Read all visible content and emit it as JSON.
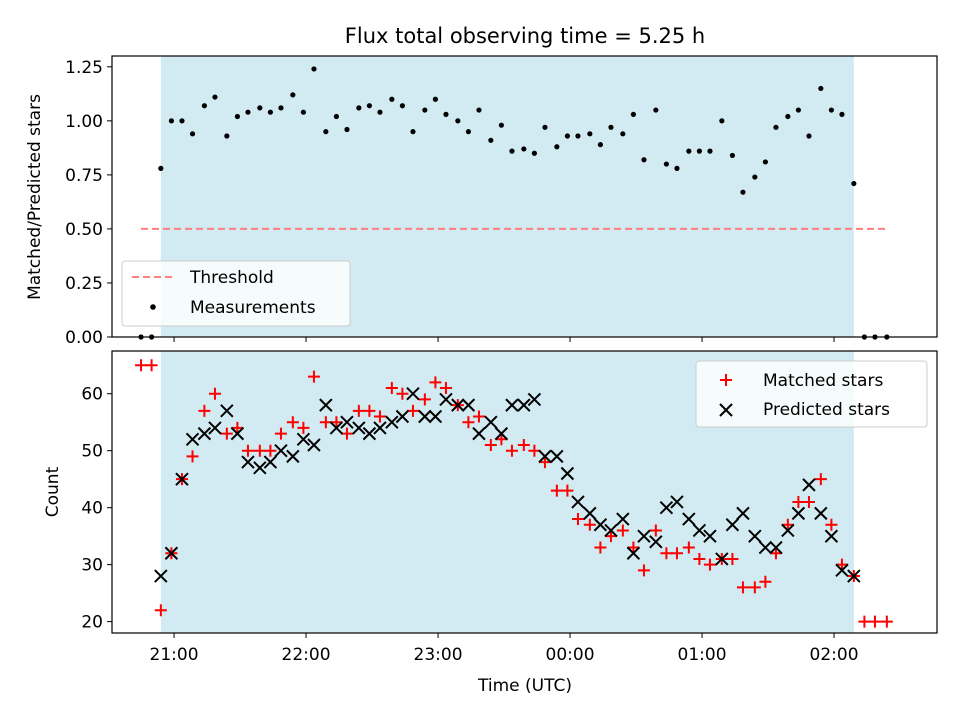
{
  "chart_data": [
    {
      "type": "scatter",
      "title": "Flux total observing time = 5.25 h",
      "ylabel": "Matched/Predicted stars",
      "xlabel": "",
      "ylim": [
        0,
        1.3
      ],
      "yticks": [
        0.0,
        0.25,
        0.5,
        0.75,
        1.0,
        1.25
      ],
      "ytick_labels": [
        "0.00",
        "0.25",
        "0.50",
        "0.75",
        "1.00",
        "1.25"
      ],
      "xlim_hours": [
        20.53,
        26.78
      ],
      "xticks_hours": [
        21,
        22,
        23,
        24,
        25,
        26
      ],
      "observing_window_hours": [
        20.9,
        26.15
      ],
      "shade_color": "#add8e6",
      "legend_location": "lower left",
      "threshold": {
        "name": "Threshold",
        "value": 0.5,
        "x_range_hours": [
          20.75,
          26.4
        ],
        "color": "#ff7f7f"
      },
      "series": [
        {
          "name": "Measurements",
          "color": "#000000",
          "x_hours": [
            20.75,
            20.83,
            20.9,
            20.98,
            21.06,
            21.14,
            21.23,
            21.31,
            21.4,
            21.48,
            21.56,
            21.65,
            21.73,
            21.81,
            21.9,
            21.98,
            22.06,
            22.15,
            22.23,
            22.31,
            22.4,
            22.48,
            22.56,
            22.65,
            22.73,
            22.81,
            22.9,
            22.98,
            23.06,
            23.15,
            23.23,
            23.31,
            23.4,
            23.48,
            23.56,
            23.65,
            23.73,
            23.81,
            23.9,
            23.98,
            24.06,
            24.15,
            24.23,
            24.31,
            24.4,
            24.48,
            24.56,
            24.65,
            24.73,
            24.81,
            24.9,
            24.98,
            25.06,
            25.15,
            25.23,
            25.31,
            25.4,
            25.48,
            25.56,
            25.65,
            25.73,
            25.81,
            25.9,
            25.98,
            26.06,
            26.15,
            26.23,
            26.31,
            26.4
          ],
          "y": [
            0.0,
            0.0,
            0.78,
            1.0,
            1.0,
            0.94,
            1.07,
            1.11,
            0.93,
            1.02,
            1.04,
            1.06,
            1.04,
            1.06,
            1.12,
            1.04,
            1.24,
            0.95,
            1.02,
            0.96,
            1.06,
            1.07,
            1.04,
            1.1,
            1.07,
            0.95,
            1.05,
            1.1,
            1.03,
            1.0,
            0.95,
            1.05,
            0.91,
            0.98,
            0.86,
            0.87,
            0.85,
            0.97,
            0.88,
            0.93,
            0.93,
            0.94,
            0.89,
            0.97,
            0.94,
            1.03,
            0.82,
            1.05,
            0.8,
            0.78,
            0.86,
            0.86,
            0.86,
            1.0,
            0.84,
            0.67,
            0.74,
            0.81,
            0.97,
            1.02,
            1.05,
            0.93,
            1.15,
            1.05,
            1.03,
            0.71,
            0.0,
            0.0,
            0.0
          ]
        }
      ]
    },
    {
      "type": "scatter",
      "title": "",
      "xlabel": "Time (UTC)",
      "ylabel": "Count",
      "ylim": [
        18,
        67.5
      ],
      "yticks": [
        20,
        30,
        40,
        50,
        60
      ],
      "ytick_labels": [
        "20",
        "30",
        "40",
        "50",
        "60"
      ],
      "xlim_hours": [
        20.53,
        26.78
      ],
      "xticks_hours": [
        21,
        22,
        23,
        24,
        25,
        26
      ],
      "xtick_labels": [
        "21:00",
        "22:00",
        "23:00",
        "00:00",
        "01:00",
        "02:00"
      ],
      "observing_window_hours": [
        20.9,
        26.15
      ],
      "shade_color": "#add8e6",
      "legend_location": "upper right",
      "series": [
        {
          "name": "Matched stars",
          "marker": "plus",
          "color": "#ff0000",
          "x_hours": [
            20.75,
            20.83,
            20.9,
            20.98,
            21.06,
            21.14,
            21.23,
            21.31,
            21.4,
            21.48,
            21.56,
            21.65,
            21.73,
            21.81,
            21.9,
            21.98,
            22.06,
            22.15,
            22.23,
            22.31,
            22.4,
            22.48,
            22.56,
            22.65,
            22.73,
            22.81,
            22.9,
            22.98,
            23.06,
            23.15,
            23.23,
            23.31,
            23.4,
            23.48,
            23.56,
            23.65,
            23.73,
            23.81,
            23.9,
            23.98,
            24.06,
            24.15,
            24.23,
            24.31,
            24.4,
            24.48,
            24.56,
            24.65,
            24.73,
            24.81,
            24.9,
            24.98,
            25.06,
            25.15,
            25.23,
            25.31,
            25.4,
            25.48,
            25.56,
            25.65,
            25.73,
            25.81,
            25.9,
            25.98,
            26.06,
            26.15,
            26.23,
            26.31,
            26.4
          ],
          "y": [
            65,
            65,
            22,
            32,
            45,
            49,
            57,
            60,
            53,
            54,
            50,
            50,
            50,
            53,
            55,
            54,
            63,
            55,
            55,
            53,
            57,
            57,
            56,
            61,
            60,
            57,
            59,
            62,
            61,
            58,
            55,
            56,
            51,
            52,
            50,
            51,
            50,
            48,
            43,
            43,
            38,
            37,
            33,
            35,
            36,
            33,
            29,
            36,
            32,
            32,
            33,
            31,
            30,
            31,
            31,
            26,
            26,
            27,
            32,
            37,
            41,
            41,
            45,
            37,
            30,
            28,
            20,
            20,
            20
          ]
        },
        {
          "name": "Predicted stars",
          "marker": "x",
          "color": "#000000",
          "x_hours": [
            20.9,
            20.98,
            21.06,
            21.14,
            21.23,
            21.31,
            21.4,
            21.48,
            21.56,
            21.65,
            21.73,
            21.81,
            21.9,
            21.98,
            22.06,
            22.15,
            22.23,
            22.31,
            22.4,
            22.48,
            22.56,
            22.65,
            22.73,
            22.81,
            22.9,
            22.98,
            23.06,
            23.15,
            23.23,
            23.31,
            23.4,
            23.48,
            23.56,
            23.65,
            23.73,
            23.81,
            23.9,
            23.98,
            24.06,
            24.15,
            24.23,
            24.31,
            24.4,
            24.48,
            24.56,
            24.65,
            24.73,
            24.81,
            24.9,
            24.98,
            25.06,
            25.15,
            25.23,
            25.31,
            25.4,
            25.48,
            25.56,
            25.65,
            25.73,
            25.81,
            25.9,
            25.98,
            26.06,
            26.15
          ],
          "y": [
            28,
            32,
            45,
            52,
            53,
            54,
            57,
            53,
            48,
            47,
            48,
            50,
            49,
            52,
            51,
            58,
            54,
            55,
            54,
            53,
            54,
            55,
            56,
            60,
            56,
            56,
            59,
            58,
            58,
            53,
            55,
            53,
            58,
            58,
            59,
            49,
            49,
            46,
            41,
            39,
            37,
            36,
            38,
            32,
            35,
            34,
            40,
            41,
            38,
            36,
            35,
            31,
            37,
            39,
            35,
            33,
            33,
            36,
            39,
            44,
            39,
            35,
            29,
            28
          ]
        }
      ]
    }
  ]
}
